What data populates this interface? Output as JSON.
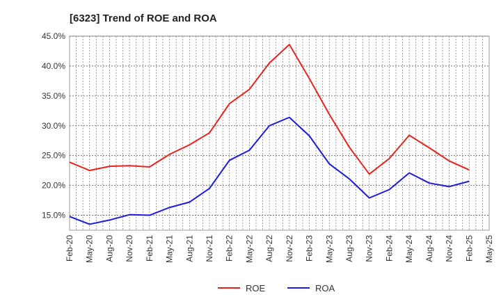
{
  "chart_data": {
    "type": "line",
    "title": "[6323]  Trend of ROE and ROA",
    "xlabel": "",
    "ylabel": "",
    "categories": [
      "Feb-20",
      "May-20",
      "Aug-20",
      "Nov-20",
      "Feb-21",
      "May-21",
      "Aug-21",
      "Nov-21",
      "Feb-22",
      "May-22",
      "Aug-22",
      "Nov-22",
      "Feb-23",
      "May-23",
      "Aug-23",
      "Nov-23",
      "Feb-24",
      "May-24",
      "Aug-24",
      "Nov-24",
      "Feb-25",
      "May-25"
    ],
    "ylim": [
      12.5,
      45.0
    ],
    "yticks": [
      15.0,
      20.0,
      25.0,
      30.0,
      35.0,
      40.0,
      45.0
    ],
    "ytick_labels": [
      "15.0%",
      "20.0%",
      "25.0%",
      "30.0%",
      "35.0%",
      "40.0%",
      "45.0%"
    ],
    "grid": true,
    "legend_position": "bottom",
    "series": [
      {
        "name": "ROE",
        "color": "#e8231e",
        "values": [
          23.9,
          22.5,
          23.2,
          23.3,
          23.1,
          25.2,
          26.8,
          28.8,
          33.7,
          36.1,
          40.5,
          43.6,
          37.9,
          31.9,
          26.4,
          21.9,
          24.5,
          28.4,
          26.3,
          24.1,
          22.6,
          null
        ]
      },
      {
        "name": "ROA",
        "color": "#1a1ae0",
        "values": [
          14.8,
          13.5,
          14.2,
          15.1,
          15.0,
          16.3,
          17.2,
          19.5,
          24.2,
          25.9,
          30.0,
          31.4,
          28.3,
          23.6,
          21.1,
          17.9,
          19.3,
          22.1,
          20.4,
          19.8,
          20.7,
          null
        ]
      }
    ]
  }
}
